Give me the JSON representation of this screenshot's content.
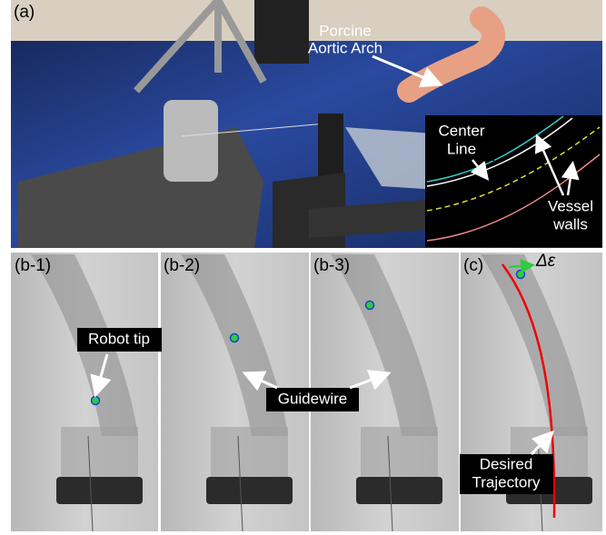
{
  "panel_a": {
    "label": "(a)",
    "specimen_label": [
      "Porcine",
      "Aortic Arch"
    ],
    "inset": {
      "center_line_label": [
        "Center",
        "Line"
      ],
      "vessel_walls_label": [
        "Vessel",
        "walls"
      ]
    }
  },
  "panels_b": [
    {
      "label": "(b-1)",
      "annotation": "Robot tip"
    },
    {
      "label": "(b-2)"
    },
    {
      "label": "(b-3)"
    }
  ],
  "guidewire_label": "Guidewire",
  "panel_c": {
    "label": "(c)",
    "error_label": "Δε",
    "trajectory_label": [
      "Desired",
      "Trajectory"
    ]
  }
}
